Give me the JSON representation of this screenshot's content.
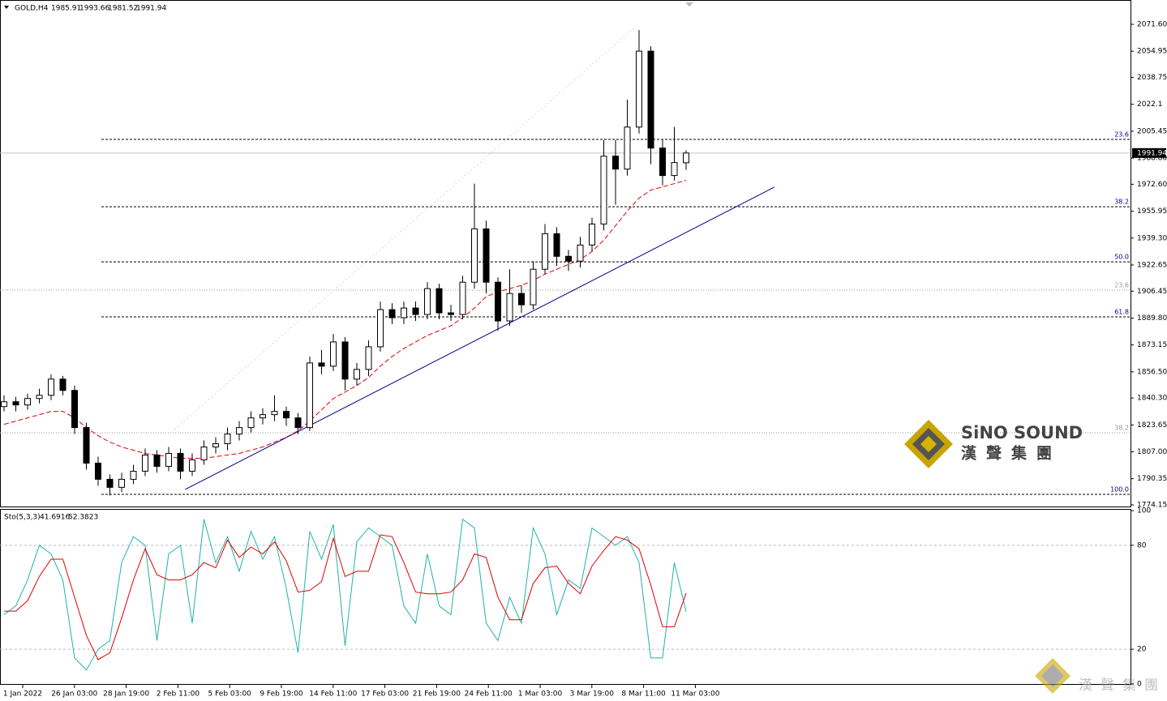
{
  "chart_data": [
    {
      "type": "candlestick",
      "symbol": "GOLD,H4",
      "candles": [
        [
          1835,
          1842,
          1832,
          1838
        ],
        [
          1838,
          1841,
          1832,
          1836
        ],
        [
          1836,
          1843,
          1833,
          1840
        ],
        [
          1840,
          1846,
          1837,
          1842
        ],
        [
          1842,
          1855,
          1839,
          1852
        ],
        [
          1852,
          1854,
          1842,
          1845
        ],
        [
          1845,
          1848,
          1818,
          1822
        ],
        [
          1822,
          1825,
          1796,
          1800
        ],
        [
          1800,
          1804,
          1786,
          1790
        ],
        [
          1790,
          1793,
          1780,
          1785
        ],
        [
          1785,
          1794,
          1782,
          1790
        ],
        [
          1790,
          1799,
          1787,
          1795
        ],
        [
          1795,
          1809,
          1792,
          1805
        ],
        [
          1805,
          1808,
          1794,
          1798
        ],
        [
          1798,
          1810,
          1795,
          1806
        ],
        [
          1806,
          1809,
          1790,
          1795
        ],
        [
          1795,
          1806,
          1792,
          1802
        ],
        [
          1802,
          1814,
          1799,
          1810
        ],
        [
          1810,
          1816,
          1806,
          1812
        ],
        [
          1812,
          1822,
          1808,
          1818
        ],
        [
          1818,
          1826,
          1814,
          1822
        ],
        [
          1822,
          1832,
          1819,
          1828
        ],
        [
          1828,
          1834,
          1824,
          1830
        ],
        [
          1830,
          1842,
          1826,
          1832
        ],
        [
          1832,
          1835,
          1823,
          1828
        ],
        [
          1828,
          1831,
          1818,
          1822
        ],
        [
          1822,
          1866,
          1820,
          1862
        ],
        [
          1862,
          1870,
          1855,
          1860
        ],
        [
          1860,
          1880,
          1857,
          1875
        ],
        [
          1875,
          1878,
          1845,
          1852
        ],
        [
          1852,
          1862,
          1848,
          1858
        ],
        [
          1858,
          1876,
          1854,
          1872
        ],
        [
          1872,
          1900,
          1869,
          1895
        ],
        [
          1895,
          1899,
          1886,
          1890
        ],
        [
          1890,
          1900,
          1886,
          1896
        ],
        [
          1896,
          1900,
          1888,
          1892
        ],
        [
          1892,
          1912,
          1889,
          1908
        ],
        [
          1908,
          1911,
          1889,
          1893
        ],
        [
          1893,
          1898,
          1888,
          1892
        ],
        [
          1892,
          1916,
          1889,
          1912
        ],
        [
          1912,
          1973,
          1908,
          1945
        ],
        [
          1945,
          1950,
          1905,
          1912
        ],
        [
          1912,
          1915,
          1882,
          1888
        ],
        [
          1888,
          1920,
          1885,
          1905
        ],
        [
          1905,
          1910,
          1893,
          1898
        ],
        [
          1898,
          1925,
          1895,
          1920
        ],
        [
          1920,
          1948,
          1917,
          1942
        ],
        [
          1942,
          1946,
          1922,
          1928
        ],
        [
          1928,
          1932,
          1919,
          1925
        ],
        [
          1925,
          1940,
          1921,
          1935
        ],
        [
          1935,
          1952,
          1931,
          1948
        ],
        [
          1948,
          2000,
          1944,
          1990
        ],
        [
          1990,
          2000,
          1960,
          1982
        ],
        [
          1982,
          2025,
          1978,
          2008
        ],
        [
          2008,
          2068,
          2004,
          2055
        ],
        [
          2055,
          2058,
          1985,
          1995
        ],
        [
          1995,
          2000,
          1972,
          1978
        ],
        [
          1978,
          2008,
          1975,
          1986
        ],
        [
          1985.91,
          1993.66,
          1981.52,
          1991.94
        ]
      ],
      "ma": {
        "color": "#e00000",
        "values": [
          1824,
          1826,
          1828,
          1830,
          1832,
          1832,
          1828,
          1822,
          1817,
          1813,
          1810,
          1808,
          1806,
          1805,
          1804,
          1803,
          1803,
          1803,
          1804,
          1805,
          1806,
          1808,
          1810,
          1813,
          1816,
          1820,
          1826,
          1833,
          1840,
          1844,
          1848,
          1853,
          1860,
          1866,
          1871,
          1875,
          1879,
          1882,
          1885,
          1890,
          1896,
          1903,
          1906,
          1908,
          1910,
          1913,
          1917,
          1920,
          1923,
          1926,
          1931,
          1938,
          1947,
          1956,
          1964,
          1969,
          1971,
          1973,
          1975
        ]
      },
      "ylim": [
        1773.15,
        2086.65
      ],
      "yticks": [
        {
          "value": 2071.6,
          "label": "2071.60"
        },
        2054.95,
        2038.75,
        2022.1,
        2005.45,
        {
          "value": 1988.8,
          "label": "1988.80"
        },
        {
          "value": 1972.6,
          "label": "1972.60"
        },
        1955.95,
        {
          "value": 1939.3,
          "label": "1939.30"
        },
        1922.65,
        1906.45,
        {
          "value": 1889.8,
          "label": "1889.80"
        },
        1873.15,
        {
          "value": 1856.5,
          "label": "1856.50"
        },
        {
          "value": 1840.3,
          "label": "1840.30"
        },
        1823.65,
        {
          "value": 1807,
          "label": "1807.00"
        },
        1790.35,
        1774.15
      ],
      "fib": [
        {
          "ratio": 23.6,
          "price": 2000.4,
          "color": "#00008b"
        },
        {
          "ratio": 38.2,
          "price": 1958.7,
          "color": "#00008b"
        },
        {
          "ratio": {
            "value": 50,
            "label": "50.0"
          },
          "price": 1924.6,
          "color": "#00008b"
        },
        {
          "ratio": 61.8,
          "price": 1890.5,
          "color": "#00008b"
        },
        {
          "ratio": {
            "value": 100,
            "label": "100.0"
          },
          "price": 1780.7,
          "color": "#00008b"
        },
        {
          "ratio": 23.6,
          "price": 1907.1,
          "color": "#999999"
        },
        {
          "ratio": 38.2,
          "price": 1818.8,
          "color": "#999999"
        }
      ],
      "trendlines": [
        {
          "color": "#00008b",
          "x": [
            15.4,
            65.5
          ],
          "y": [
            1783.7,
            1970.8
          ]
        },
        {
          "color": "#d8d8d8",
          "x": [
            14.5,
            53.7
          ],
          "y": [
            1820.8,
            2070.1
          ]
        }
      ],
      "xticks": [
        "1 Jan 2022",
        "26 Jan 03:00",
        "28 Jan 19:00",
        "2 Feb 11:00",
        "5 Feb 03:00",
        "9 Feb 19:00",
        "14 Feb 11:00",
        "17 Feb 03:00",
        "21 Feb 19:00",
        "24 Feb 11:00",
        "1 Mar 03:00",
        "3 Mar 19:00",
        "8 Mar 11:00",
        "11 Mar 03:00"
      ],
      "brand": "SiNO SOUND",
      "brand_cn": "漢聲集團"
    },
    {
      "type": "line",
      "title": "Sto(5,3,3)",
      "ylim": [
        -0.5,
        100.5
      ],
      "yticks": [
        100,
        80,
        20,
        0
      ],
      "levels": [
        80,
        20
      ],
      "series": [
        {
          "color": "#20b2aa",
          "values": [
            40,
            45,
            60,
            80,
            75,
            60,
            15,
            8,
            20,
            25,
            70,
            85,
            80,
            25,
            75,
            80,
            35,
            95,
            70,
            85,
            65,
            88,
            72,
            85,
            55,
            18,
            88,
            72,
            92,
            22,
            82,
            90,
            85,
            80,
            45,
            35,
            75,
            45,
            40,
            95,
            90,
            35,
            25,
            50,
            35,
            90,
            75,
            40,
            60,
            55,
            90,
            85,
            80,
            85,
            70,
            15,
            15,
            70,
            41.6916
          ]
        },
        {
          "color": "#e00000",
          "values": [
            42,
            42,
            48,
            62,
            72,
            72,
            50,
            28,
            14,
            18,
            38,
            60,
            78,
            63,
            60,
            60,
            63,
            70,
            67,
            83,
            73,
            79,
            75,
            82,
            71,
            53,
            54,
            59,
            84,
            62,
            65,
            65,
            86,
            85,
            70,
            53,
            52,
            52,
            53,
            60,
            75,
            73,
            50,
            37,
            37,
            58,
            67,
            68,
            58,
            52,
            68,
            77,
            85,
            83,
            78,
            57,
            33,
            33,
            52.3823
          ]
        }
      ]
    }
  ]
}
